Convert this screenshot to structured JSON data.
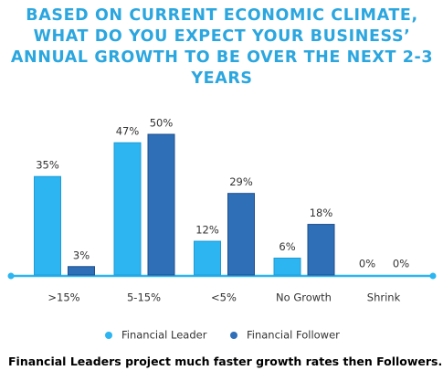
{
  "chart_data": {
    "type": "bar",
    "title": "BASED ON CURRENT ECONOMIC CLIMATE, WHAT DO YOU EXPECT YOUR BUSINESS’ ANNUAL GROWTH TO BE OVER THE NEXT 2-3 YEARS",
    "categories": [
      ">15%",
      "5-15%",
      "<5%",
      "No Growth",
      "Shrink"
    ],
    "series": [
      {
        "name": "Financial Leader",
        "color": "#2cb5f0",
        "values": [
          35,
          47,
          12,
          6,
          0
        ],
        "value_labels": [
          "35%",
          "47%",
          "12%",
          "6%",
          "0%"
        ]
      },
      {
        "name": "Financial Follower",
        "color": "#2f6fb8",
        "values": [
          3,
          50,
          29,
          18,
          0
        ],
        "value_labels": [
          "3%",
          "50%",
          "29%",
          "18%",
          "0%"
        ]
      }
    ],
    "caption": "Financial Leaders project much faster growth rates then Followers."
  }
}
